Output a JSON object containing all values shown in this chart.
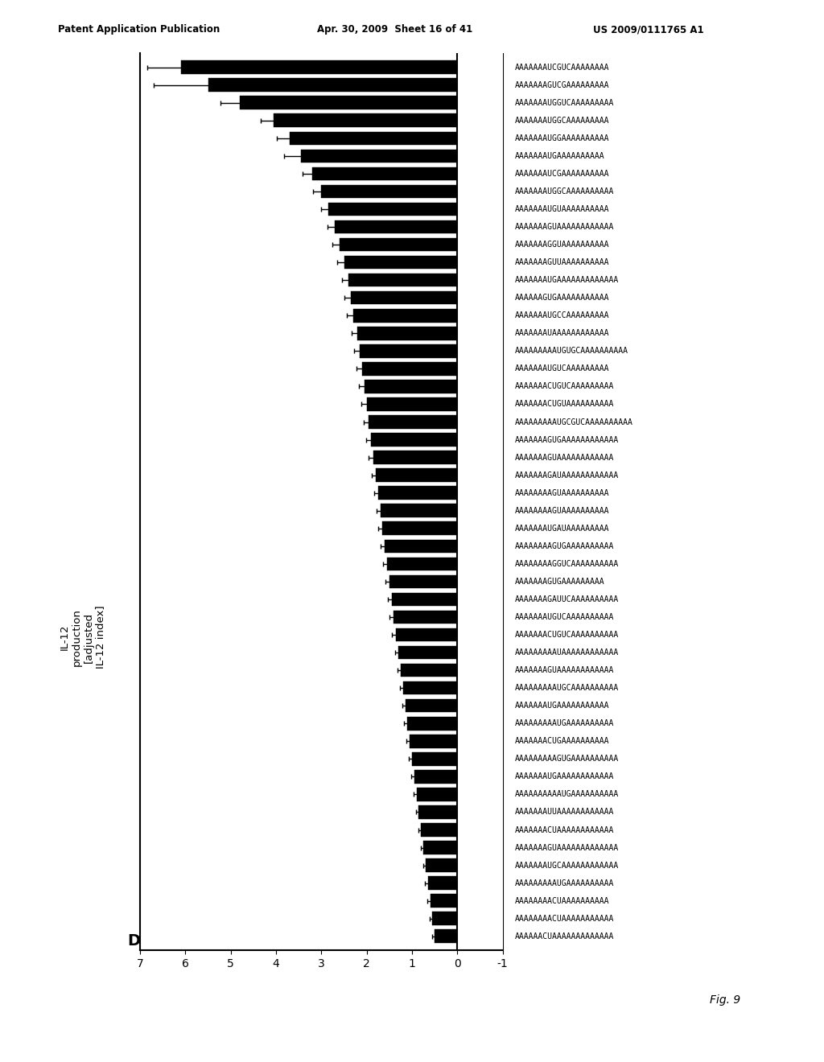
{
  "header_left": "Patent Application Publication",
  "header_mid": "Apr. 30, 2009  Sheet 16 of 41",
  "header_right": "US 2009/0111765 A1",
  "fig_label": "Fig. 9",
  "panel_label": "D",
  "xlabel_text": "IL-12\nproduction\n[adjusted\nIL-12 index]",
  "xlim": [
    7,
    -1
  ],
  "xticks": [
    7,
    6,
    5,
    4,
    3,
    2,
    1,
    0,
    -1
  ],
  "xticklabels": [
    "7",
    "6",
    "5",
    "4",
    "3",
    "2",
    "1",
    "0",
    "-1"
  ],
  "bar_values": [
    6.1,
    5.5,
    4.8,
    4.05,
    3.7,
    3.45,
    3.2,
    3.0,
    2.85,
    2.7,
    2.6,
    2.5,
    2.4,
    2.35,
    2.3,
    2.2,
    2.15,
    2.1,
    2.05,
    2.0,
    1.95,
    1.9,
    1.85,
    1.8,
    1.75,
    1.7,
    1.65,
    1.6,
    1.55,
    1.5,
    1.45,
    1.4,
    1.35,
    1.3,
    1.25,
    1.2,
    1.15,
    1.1,
    1.05,
    1.0,
    0.95,
    0.9,
    0.85,
    0.8,
    0.75,
    0.7,
    0.65,
    0.6,
    0.55,
    0.5
  ],
  "bar_errors": [
    0.75,
    1.2,
    0.42,
    0.28,
    0.28,
    0.38,
    0.22,
    0.18,
    0.16,
    0.16,
    0.16,
    0.16,
    0.14,
    0.14,
    0.14,
    0.13,
    0.13,
    0.13,
    0.12,
    0.11,
    0.11,
    0.11,
    0.1,
    0.09,
    0.09,
    0.09,
    0.09,
    0.09,
    0.09,
    0.09,
    0.09,
    0.09,
    0.09,
    0.07,
    0.07,
    0.07,
    0.07,
    0.07,
    0.07,
    0.07,
    0.07,
    0.07,
    0.06,
    0.06,
    0.06,
    0.06,
    0.06,
    0.06,
    0.06,
    0.06
  ],
  "sequences": [
    "AAAAAAAUCGUCAAAAAAAA",
    "AAAAAAAGUCGAAAAAAAAA",
    "AAAAAAAUGGUCAAAAAAAAA",
    "AAAAAAAUGGCAAAAAAAAA",
    "AAAAAAAUGGAAAAAAAAAA",
    "AAAAAAAUGAAAAAAAAAA",
    "AAAAAAAUCGAAAAAAAAAA",
    "AAAAAAAUGGCAAAAAAAAAA",
    "AAAAAAAUGUAAAAAAAAAA",
    "AAAAAAAGUAAAAAAAAAAAA",
    "AAAAAAAGGUAAAAAAAAAA",
    "AAAAAAAGUUAAAAAAAAAA",
    "AAAAAAAUGAAAAAAAAAAAAA",
    "AAAAAAGUGAAAAAAAAAAA",
    "AAAAAAAUGCCAAAAAAAAA",
    "AAAAAAAUAAAAAAAAAAAA",
    "AAAAAAAAAUGUGCAAAAAAAAAA",
    "AAAAAAAUGUCAAAAAAAAA",
    "AAAAAAACUGUCAAAAAAAAA",
    "AAAAAAACUGUAAAAAAAAAA",
    "AAAAAAAAAUGCGUCAAAAAAAAAA",
    "AAAAAAAGUGAAAAAAAAAAAA",
    "AAAAAAAGUAAAAAAAAAAAA",
    "AAAAAAAGAUAAAAAAAAAAAA",
    "AAAAAAAAGUAAAAAAAAAA",
    "AAAAAAAAGUAAAAAAAAAA",
    "AAAAAAAUGAUAAAAAAAAA",
    "AAAAAAAAGUGAAAAAAAAAA",
    "AAAAAAAAGGUCAAAAAAAAAA",
    "AAAAAAAGUGAAAAAAAAA",
    "AAAAAAAGAUUCAAAAAAAAAA",
    "AAAAAAAUGUCAAAAAAAAAA",
    "AAAAAAACUGUCAAAAAAAAAA",
    "AAAAAAAAAUAAAAAAAAAAAA",
    "AAAAAAAGUAAAAAAAAAAAA",
    "AAAAAAAAAUGCAAAAAAAAAA",
    "AAAAAAAUGAAAAAAAAAAA",
    "AAAAAAAAAUGAAAAAAAAAA",
    "AAAAAAACUGAAAAAAAAAA",
    "AAAAAAAAAGUGAAAAAAAAAA",
    "AAAAAAAUGAAAAAAAAAAAA",
    "AAAAAAAAAAUGAAAAAAAAAA",
    "AAAAAAAUUAAAAAAAAAAAA",
    "AAAAAAACUAAAAAAAAAAAA",
    "AAAAAAAGUAAAAAAAAAAAAA",
    "AAAAAAAUGCAAAAAAAAAAAA",
    "AAAAAAAAAUGAAAAAAAAAA",
    "AAAAAAAACUAAAAAAAAAA",
    "AAAAAAAACUAAAAAAAAAAA",
    "AAAAAACUAAAAAAAAAAAAA"
  ],
  "bar_color": "#000000",
  "background_color": "#ffffff",
  "bar_height": 0.75
}
